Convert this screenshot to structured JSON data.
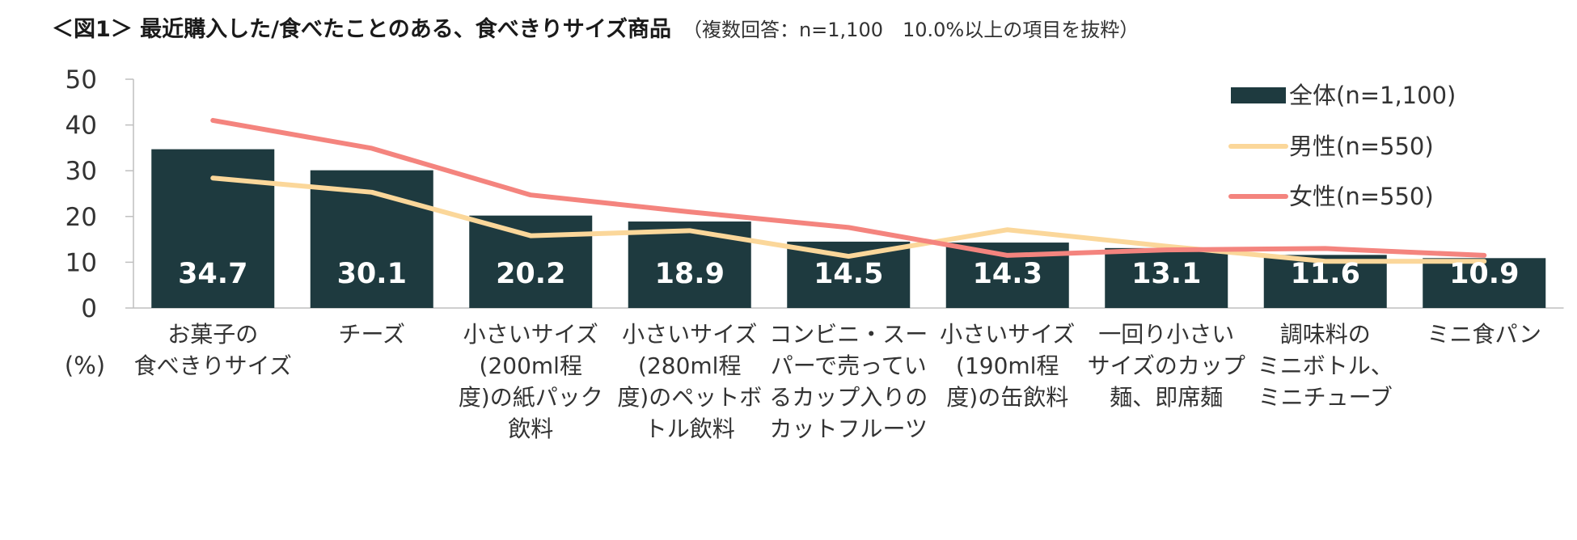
{
  "title": {
    "main": "＜図1＞ 最近購入した/食べたことのある、食べきりサイズ商品",
    "note": "（複数回答：n=1,100　10.0%以上の項目を抜粋）"
  },
  "chart_data": {
    "type": "bar",
    "ylabel": "(%)",
    "ylim": [
      0,
      50
    ],
    "yticks": [
      "0",
      "10",
      "20",
      "30",
      "40",
      "50"
    ],
    "categories": [
      [
        "お菓子の",
        "食べきりサイズ"
      ],
      [
        "チーズ"
      ],
      [
        "小さいサイズ",
        "(200ml程",
        "度)の紙パック",
        "飲料"
      ],
      [
        "小さいサイズ",
        "(280ml程",
        "度)のペットボ",
        "トル飲料"
      ],
      [
        "コンビニ・スー",
        "パーで売ってい",
        "るカップ入りの",
        "カットフルーツ"
      ],
      [
        "小さいサイズ",
        "(190ml程",
        "度)の缶飲料"
      ],
      [
        "一回り小さい",
        "サイズのカップ",
        "麺、即席麺"
      ],
      [
        "調味料の",
        "ミニボトル、",
        "ミニチューブ"
      ],
      [
        "ミニ食パン"
      ]
    ],
    "series": [
      {
        "name": "全体(n=1,100)",
        "kind": "bar",
        "color": "#1e3a3f",
        "values": [
          34.7,
          30.1,
          20.2,
          18.9,
          14.5,
          14.3,
          13.1,
          11.6,
          10.9
        ],
        "labels": [
          "34.7",
          "30.1",
          "20.2",
          "18.9",
          "14.5",
          "14.3",
          "13.1",
          "11.6",
          "10.9"
        ]
      },
      {
        "name": "男性(n=550)",
        "kind": "line",
        "color": "#fbd79a",
        "values": [
          28.4,
          25.3,
          15.8,
          16.9,
          11.3,
          17.1,
          13.5,
          10.2,
          10.2
        ]
      },
      {
        "name": "女性(n=550)",
        "kind": "line",
        "color": "#f4847e",
        "values": [
          41.0,
          34.9,
          24.7,
          21.0,
          17.6,
          11.5,
          12.7,
          13.0,
          11.5
        ]
      }
    ],
    "legend": "top-right",
    "grid": false
  }
}
